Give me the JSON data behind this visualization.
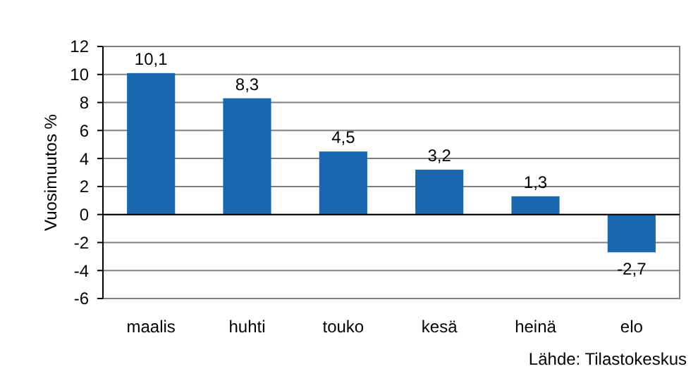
{
  "chart_data": {
    "type": "bar",
    "ylabel": "Vuosimuutos %",
    "categories": [
      "maalis",
      "huhti",
      "touko",
      "kesä",
      "heinä",
      "elo"
    ],
    "values": [
      10.1,
      8.3,
      4.5,
      3.2,
      1.3,
      -2.7
    ],
    "color": "#1a67b0",
    "value_labels": [
      "10,1",
      "8,3",
      "4,5",
      "3,2",
      "1,3",
      "-2,7"
    ],
    "ylim": [
      -6,
      12
    ],
    "yticks": [
      -6,
      -4,
      -2,
      0,
      2,
      4,
      6,
      8,
      10,
      12
    ],
    "grid": "y",
    "annotations": [
      "Lähde: Tilastokeskus"
    ]
  }
}
